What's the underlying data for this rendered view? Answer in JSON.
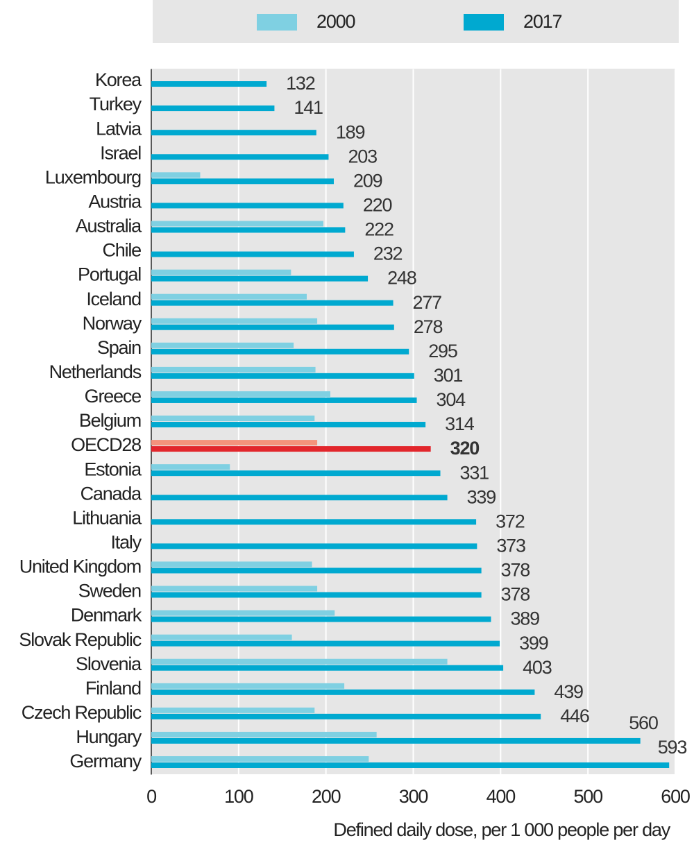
{
  "chart_data": {
    "type": "bar",
    "orientation": "horizontal",
    "x_axis_label": "Defined daily dose, per 1 000 people per day",
    "categories": [
      "Korea",
      "Turkey",
      "Latvia",
      "Israel",
      "Luxembourg",
      "Austria",
      "Australia",
      "Chile",
      "Portugal",
      "Iceland",
      "Norway",
      "Spain",
      "Netherlands",
      "Greece",
      "Belgium",
      "OECD28",
      "Estonia",
      "Canada",
      "Lithuania",
      "Italy",
      "United Kingdom",
      "Sweden",
      "Denmark",
      "Slovak Republic",
      "Slovenia",
      "Finland",
      "Czech Republic",
      "Hungary",
      "Germany"
    ],
    "series": [
      {
        "name": "2000",
        "color": "#7fd0e2",
        "values": [
          null,
          null,
          null,
          null,
          56,
          null,
          197,
          null,
          160,
          178,
          190,
          163,
          188,
          205,
          187,
          190,
          90,
          null,
          null,
          null,
          184,
          190,
          210,
          161,
          339,
          221,
          187,
          258,
          249
        ]
      },
      {
        "name": "2017",
        "color": "#00a9d0",
        "values": [
          132,
          141,
          189,
          203,
          209,
          220,
          222,
          232,
          248,
          277,
          278,
          295,
          301,
          304,
          314,
          320,
          331,
          339,
          372,
          373,
          378,
          378,
          389,
          399,
          403,
          439,
          446,
          560,
          593
        ],
        "data_labels": true
      }
    ],
    "highlight": {
      "category": "OECD28",
      "colors": [
        "#f4937c",
        "#e2262c"
      ]
    },
    "xlim": [
      0,
      600
    ],
    "xticks": [
      0,
      100,
      200,
      300,
      400,
      500,
      600
    ],
    "grid": true,
    "legend": "top"
  }
}
